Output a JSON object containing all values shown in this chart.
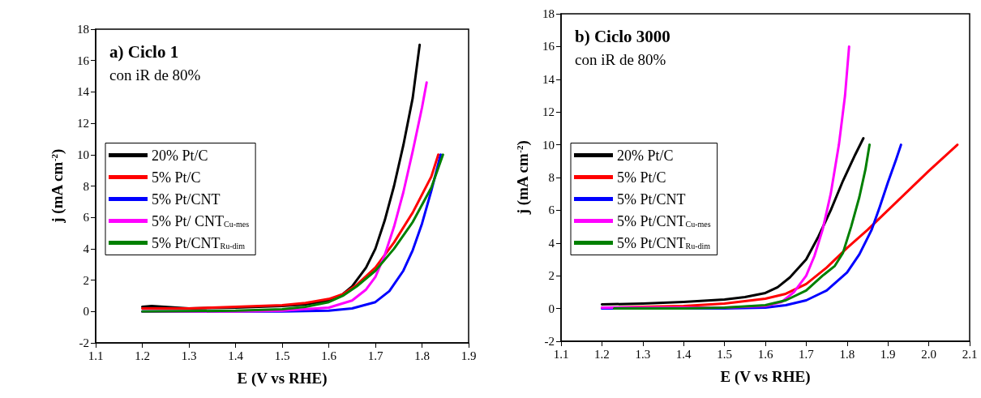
{
  "chart_data": [
    {
      "type": "line",
      "title": "a) Ciclo 1",
      "subtitle": "con iR de 80%",
      "xlabel": "E (V vs RHE)",
      "ylabel": "j (mA cm$^{-2}$)",
      "xlim": [
        1.1,
        1.9
      ],
      "xticks": [
        1.1,
        1.2,
        1.3,
        1.4,
        1.5,
        1.6,
        1.7,
        1.8,
        1.9
      ],
      "ylim": [
        -2,
        18
      ],
      "yticks": [
        -2,
        0,
        2,
        4,
        6,
        8,
        10,
        12,
        14,
        16,
        18
      ],
      "legend": "left",
      "grid": false,
      "marker": "none",
      "line_style": "solid",
      "series": [
        {
          "name": "20% Pt/C",
          "color": "#000000",
          "x": [
            1.2,
            1.22,
            1.3,
            1.4,
            1.5,
            1.55,
            1.6,
            1.63,
            1.65,
            1.68,
            1.7,
            1.72,
            1.74,
            1.76,
            1.78,
            1.795
          ],
          "values": [
            0.3,
            0.35,
            0.2,
            0.25,
            0.35,
            0.45,
            0.7,
            1.1,
            1.6,
            2.8,
            4.0,
            5.8,
            8.0,
            10.6,
            13.6,
            17.0
          ]
        },
        {
          "name": "5% Pt/C",
          "color": "#ff0000",
          "x": [
            1.2,
            1.3,
            1.4,
            1.5,
            1.55,
            1.6,
            1.63,
            1.66,
            1.7,
            1.74,
            1.78,
            1.82,
            1.835
          ],
          "values": [
            0.2,
            0.2,
            0.3,
            0.4,
            0.55,
            0.8,
            1.1,
            1.7,
            2.8,
            4.4,
            6.3,
            8.6,
            10.0
          ]
        },
        {
          "name": "5% Pt/CNT",
          "color": "#0000ff",
          "x": [
            1.2,
            1.5,
            1.6,
            1.65,
            1.7,
            1.73,
            1.76,
            1.78,
            1.8,
            1.82,
            1.84
          ],
          "values": [
            0.0,
            0.0,
            0.05,
            0.2,
            0.6,
            1.3,
            2.6,
            3.9,
            5.6,
            7.7,
            10.0
          ]
        },
        {
          "name": "5% Pt/ CNT$_{Cu-mes}$",
          "color": "#ff00ff",
          "x": [
            1.2,
            1.4,
            1.5,
            1.6,
            1.65,
            1.68,
            1.7,
            1.72,
            1.74,
            1.76,
            1.78,
            1.8,
            1.81
          ],
          "values": [
            0.0,
            0.0,
            0.05,
            0.25,
            0.7,
            1.4,
            2.2,
            3.6,
            5.4,
            7.6,
            10.2,
            13.0,
            14.6
          ]
        },
        {
          "name": "5% Pt/CNT$_{Ru-dim}$",
          "color": "#008000",
          "x": [
            1.2,
            1.4,
            1.5,
            1.55,
            1.6,
            1.63,
            1.66,
            1.7,
            1.74,
            1.78,
            1.82,
            1.845
          ],
          "values": [
            0.0,
            0.05,
            0.15,
            0.3,
            0.6,
            1.0,
            1.6,
            2.6,
            4.0,
            5.7,
            7.9,
            10.0
          ]
        }
      ]
    },
    {
      "type": "line",
      "title": "b) Ciclo 3000",
      "subtitle": "con iR de 80%",
      "xlabel": "E (V vs RHE)",
      "ylabel": "j (mA cm$^{-2}$)",
      "xlim": [
        1.1,
        2.1
      ],
      "xticks": [
        1.1,
        1.2,
        1.3,
        1.4,
        1.5,
        1.6,
        1.7,
        1.8,
        1.9,
        {
          "value": 2,
          "label": "2.0"
        },
        2.1
      ],
      "ylim": [
        -2,
        18
      ],
      "yticks": [
        -2,
        0,
        2,
        4,
        6,
        8,
        10,
        12,
        14,
        16,
        18
      ],
      "legend": "left",
      "grid": false,
      "marker": "none",
      "line_style": "solid",
      "series": [
        {
          "name": "20% Pt/C",
          "color": "#000000",
          "x": [
            1.2,
            1.3,
            1.4,
            1.5,
            1.55,
            1.6,
            1.63,
            1.66,
            1.7,
            1.73,
            1.76,
            1.79,
            1.82,
            1.84
          ],
          "values": [
            0.25,
            0.3,
            0.4,
            0.55,
            0.7,
            0.95,
            1.3,
            1.9,
            3.0,
            4.4,
            6.0,
            7.8,
            9.4,
            10.4
          ]
        },
        {
          "name": "5% Pt/C",
          "color": "#ff0000",
          "x": [
            1.2,
            1.3,
            1.4,
            1.5,
            1.6,
            1.65,
            1.7,
            1.75,
            1.8,
            1.85,
            1.9,
            1.95,
            2.0,
            2.07
          ],
          "values": [
            0.05,
            0.1,
            0.15,
            0.3,
            0.6,
            0.9,
            1.5,
            2.5,
            3.7,
            4.8,
            6.0,
            7.2,
            8.4,
            10.0
          ]
        },
        {
          "name": "5% Pt/CNT",
          "color": "#0000ff",
          "x": [
            1.2,
            1.5,
            1.6,
            1.65,
            1.7,
            1.75,
            1.8,
            1.83,
            1.86,
            1.88,
            1.9,
            1.92,
            1.932
          ],
          "values": [
            0.0,
            0.0,
            0.05,
            0.2,
            0.5,
            1.1,
            2.2,
            3.3,
            4.8,
            6.2,
            7.7,
            9.1,
            10.0
          ]
        },
        {
          "name": "5% Pt/CNT$_{Cu-mes}$",
          "color": "#ff00ff",
          "x": [
            1.2,
            1.23,
            1.5,
            1.6,
            1.64,
            1.67,
            1.7,
            1.72,
            1.74,
            1.76,
            1.78,
            1.795,
            1.805
          ],
          "values": [
            0.05,
            0.05,
            0.05,
            0.15,
            0.4,
            1.0,
            2.0,
            3.2,
            4.8,
            7.0,
            10.0,
            13.0,
            16.0
          ]
        },
        {
          "name": "5% Pt/CNT$_{Ru-dim}$",
          "color": "#008000",
          "x": [
            1.23,
            1.4,
            1.5,
            1.6,
            1.65,
            1.7,
            1.74,
            1.77,
            1.79,
            1.81,
            1.83,
            1.845,
            1.855
          ],
          "values": [
            0.0,
            0.0,
            0.05,
            0.2,
            0.5,
            1.1,
            2.0,
            2.6,
            3.4,
            5.0,
            6.8,
            8.5,
            10.0
          ]
        }
      ]
    }
  ]
}
